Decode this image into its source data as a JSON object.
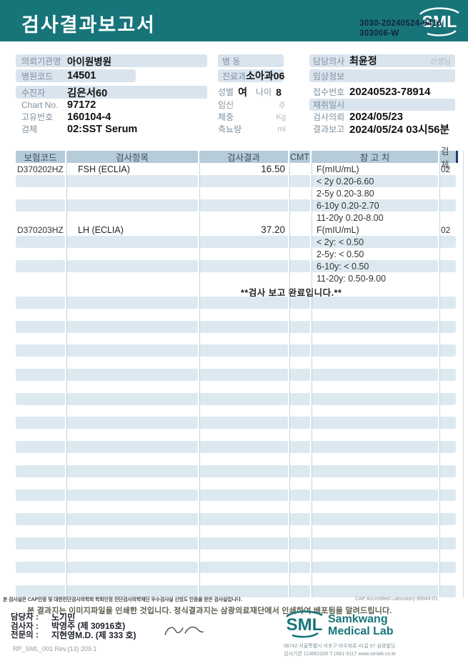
{
  "colors": {
    "teal": "#17757a",
    "stripe": "#dde9f1",
    "table_header_bg": "#b6ccd9",
    "pill": "#d9e4ee",
    "navy": "#1f3a6e"
  },
  "banner": {
    "title": "검사결과보고서",
    "logo_text": "SML",
    "doc_no_line1": "3030-20240524-0416",
    "doc_no_line2": "303006-W"
  },
  "info": {
    "left": {
      "org_label": "의뢰기관명",
      "org_value": "아이원병원",
      "hosp_code_label": "병원코드",
      "hosp_code_value": "14501",
      "patient_label": "수진자",
      "patient_value": "김은서60",
      "chart_label": "Chart No.",
      "chart_value": "97172",
      "uid_label": "고유번호",
      "uid_value": "160104-4",
      "specimen_label": "검체",
      "specimen_value": "02:SST Serum"
    },
    "mid": {
      "ward_label": "병  동",
      "dept_label": "진료과",
      "dept_value": "소아과06",
      "sex_label": "성별",
      "sex_value": "여",
      "age_label": "나이",
      "age_value": "8",
      "preg_label": "임신",
      "preg_unit": "주",
      "weight_label": "체중",
      "weight_unit": "Kg",
      "urine_label": "축뇨량",
      "urine_unit": "ml"
    },
    "right": {
      "doctor_label": "담당의사",
      "doctor_value": "최윤정",
      "doctor_suffix": "선생님",
      "clinical_label": "임상정보",
      "recv_label": "접수번호",
      "recv_value": "20240523-78914",
      "collect_label": "채취일시",
      "order_label": "검사의뢰",
      "order_value": "2024/05/23",
      "report_label": "결과보고",
      "report_value": "2024/05/24 03시56분"
    }
  },
  "table": {
    "headers": [
      "보험코드",
      "검사항목",
      "검사결과",
      "CMT",
      "참 고 치",
      "검체"
    ],
    "rows": [
      {
        "code": "D370202HZ",
        "name": "FSH (ECLIA)",
        "result": "16.50",
        "cmt": "",
        "ref": "F(mIU/mL)",
        "spec": "02",
        "striped": false
      },
      {
        "code": "",
        "name": "",
        "result": "",
        "cmt": "",
        "ref": "< 2y 0.20-6.60",
        "spec": "",
        "striped": true
      },
      {
        "code": "",
        "name": "",
        "result": "",
        "cmt": "",
        "ref": "2-5y 0.20-3.80",
        "spec": "",
        "striped": false
      },
      {
        "code": "",
        "name": "",
        "result": "",
        "cmt": "",
        "ref": "6-10y 0.20-2.70",
        "spec": "",
        "striped": true
      },
      {
        "code": "",
        "name": "",
        "result": "",
        "cmt": "",
        "ref": "11-20y 0.20-8.00",
        "spec": "",
        "striped": false
      },
      {
        "code": "D370203HZ",
        "name": "LH (ECLIA)",
        "result": "37.20",
        "cmt": "",
        "ref": "F(mIU/mL)",
        "spec": "02",
        "striped": false
      },
      {
        "code": "",
        "name": "",
        "result": "",
        "cmt": "",
        "ref": "< 2y: < 0.50",
        "spec": "",
        "striped": true
      },
      {
        "code": "",
        "name": "",
        "result": "",
        "cmt": "",
        "ref": "2-5y: < 0.50",
        "spec": "",
        "striped": false
      },
      {
        "code": "",
        "name": "",
        "result": "",
        "cmt": "",
        "ref": "6-10y: < 0.50",
        "spec": "",
        "striped": true
      },
      {
        "code": "",
        "name": "",
        "result": "",
        "cmt": "",
        "ref": "11-20y: 0.50-9.00",
        "spec": "",
        "striped": false
      },
      {
        "message": "**검사  보고  완료입니다.**",
        "striped": false
      }
    ],
    "empty_row_count": 25
  },
  "footer": {
    "cert_line": "본 검사실은 CAP인증 및 대한진단검사의학회 학회인정 진단검사의학재단 우수검사실 신빙도 인증을 받은 검사실입니다.",
    "cap_line": "CAP Accredited Laboratory 89944-01",
    "notice": "본 결과지는 이미지파일을 인쇄한 것입니다. 정식결과지는 삼광의료재단에서 인쇄하여 배포됨을 알려드립니다.",
    "staff": [
      {
        "label": "담당자 :",
        "value": "노기민"
      },
      {
        "label": "검사자 :",
        "value": "박영주 (제 30916호)"
      },
      {
        "label": "전문의 :",
        "value": "지현영M.D. (제 333 호)"
      }
    ],
    "logo_text": "SML",
    "logo_name1": "Samkwang",
    "logo_name2": "Medical Lab",
    "addr1": "08742 서울특별시 서초구 바우뫼로 41길 57 삼광빌딩",
    "addr2": "검사기관 113862200 T.1661-5117 www.smlab.co.kr",
    "form_no": "RP_SML_001 Rev.(13) 209.1"
  }
}
